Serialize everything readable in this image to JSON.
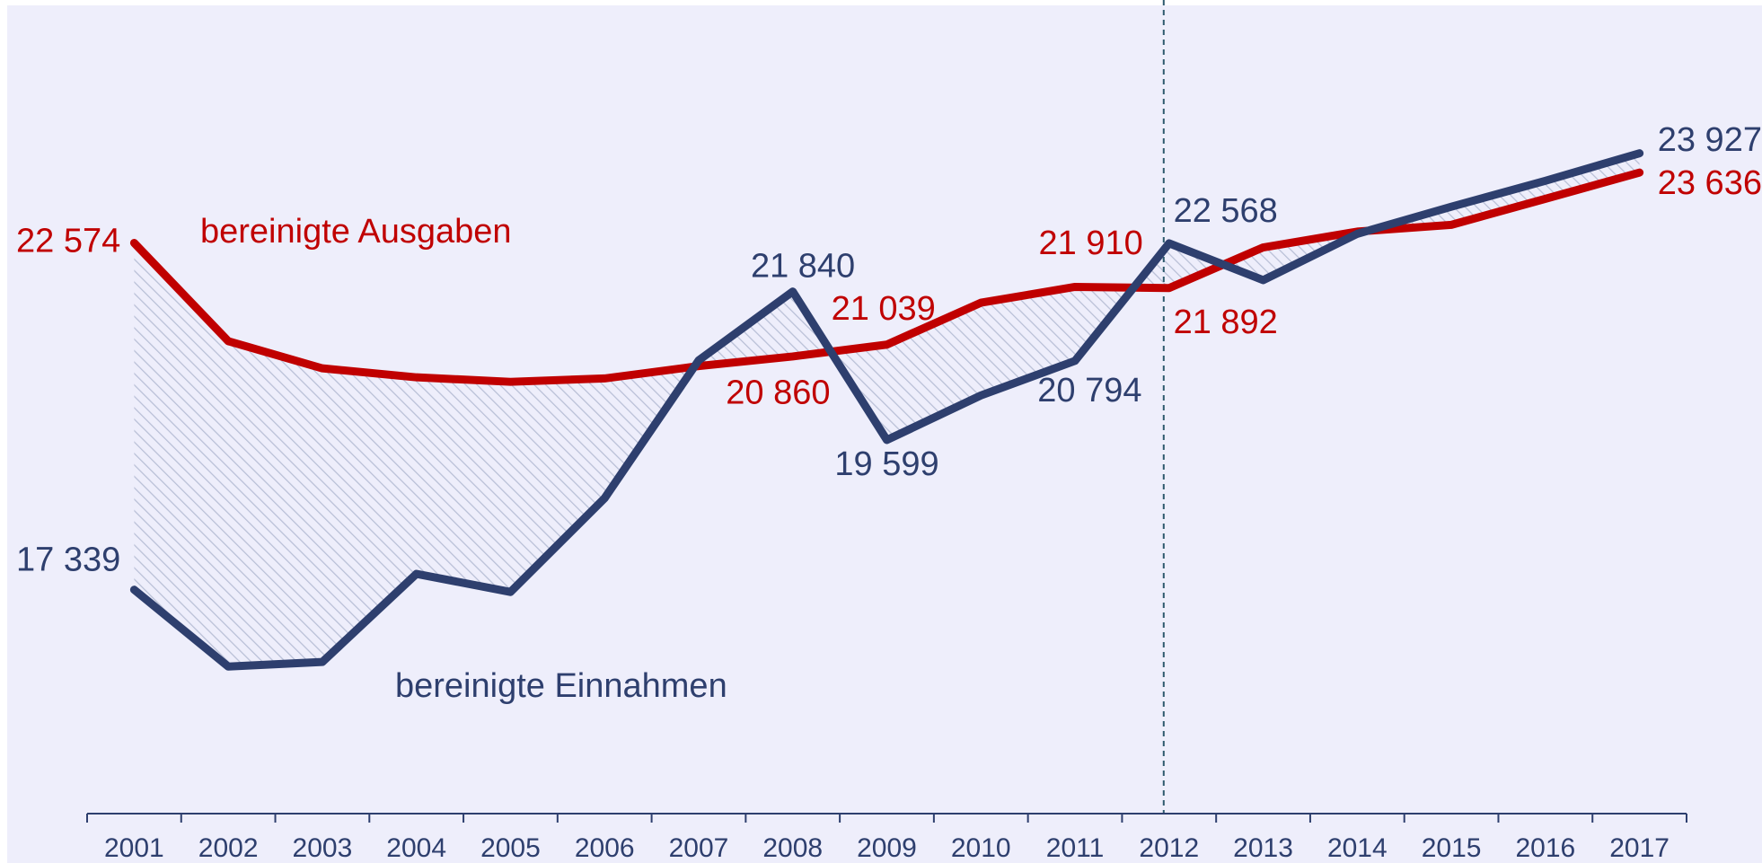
{
  "chart_data": {
    "type": "line",
    "categories": [
      "2001",
      "2002",
      "2003",
      "2004",
      "2005",
      "2006",
      "2007",
      "2008",
      "2009",
      "2010",
      "2011",
      "2012",
      "2013",
      "2014",
      "2015",
      "2016",
      "2017"
    ],
    "series": [
      {
        "name": "bereinigte Ausgaben",
        "color": "#c00000",
        "values": [
          22574,
          21091,
          20681,
          20545,
          20477,
          20528,
          20715,
          20860,
          21039,
          21671,
          21910,
          21892,
          22506,
          22745,
          22847,
          23240,
          23636
        ],
        "value_labels": [
          "22 574",
          null,
          null,
          null,
          null,
          null,
          null,
          "20 860",
          "21 039",
          null,
          "21 910",
          "21 892",
          null,
          null,
          null,
          null,
          "23 636"
        ]
      },
      {
        "name": "bereinigte Einnahmen",
        "color": "#2e3f6e",
        "values": [
          17339,
          16179,
          16248,
          17578,
          17305,
          18720,
          20801,
          21840,
          19599,
          20272,
          20794,
          22568,
          22012,
          22711,
          23120,
          23512,
          23927
        ],
        "value_labels": [
          "17 339",
          null,
          null,
          null,
          null,
          null,
          null,
          "21 840",
          "19 599",
          null,
          "20 794",
          "22 568",
          null,
          null,
          null,
          null,
          "23 927"
        ]
      }
    ],
    "ylim": [
      14000,
      26200
    ],
    "divider": "2012"
  }
}
